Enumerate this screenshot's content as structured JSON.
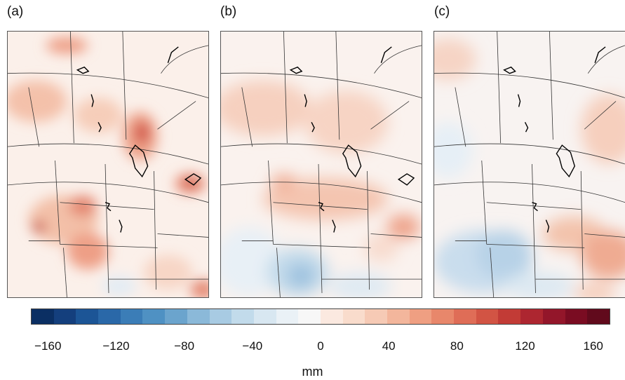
{
  "panels": [
    {
      "id": "a",
      "label": "(a)"
    },
    {
      "id": "b",
      "label": "(b)"
    },
    {
      "id": "c",
      "label": "(c)"
    }
  ],
  "colorbar": {
    "ticks": [
      {
        "value": -160,
        "label": "−160"
      },
      {
        "value": -120,
        "label": "−120"
      },
      {
        "value": -80,
        "label": "−80"
      },
      {
        "value": -40,
        "label": "−40"
      },
      {
        "value": 0,
        "label": "0"
      },
      {
        "value": 40,
        "label": "40"
      },
      {
        "value": 80,
        "label": "80"
      },
      {
        "value": 120,
        "label": "120"
      },
      {
        "value": 160,
        "label": "160"
      }
    ],
    "range": [
      -170,
      170
    ],
    "unit": "mm",
    "colors": [
      "#0b2f63",
      "#143f7d",
      "#1c5596",
      "#2a68a8",
      "#3b7db7",
      "#4f91c3",
      "#6ba4cd",
      "#8bb9d9",
      "#a8cbe3",
      "#c2dbeb",
      "#d8e7f1",
      "#eaf1f6",
      "#f7f7f7",
      "#fbe9e0",
      "#f9dccc",
      "#f6cab5",
      "#f3b69c",
      "#ef9f82",
      "#e8876b",
      "#df6d57",
      "#d25444",
      "#c23b36",
      "#ad2630",
      "#93162a",
      "#7a0c22",
      "#610a1c"
    ]
  },
  "colors": {
    "positive": "#d8705d",
    "negative": "#7aaad2",
    "neutral": "#f7f4f2",
    "borders": "#333333"
  }
}
